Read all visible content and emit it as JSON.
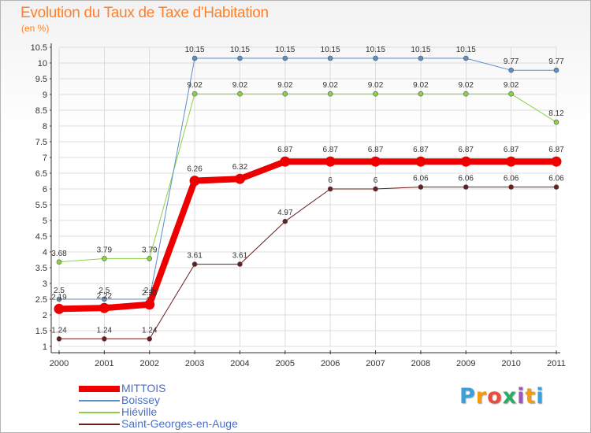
{
  "header": {
    "title": "Evolution du Taux de Taxe d'Habitation",
    "subtitle": "(en %)"
  },
  "chart_data": {
    "type": "line",
    "title": "Evolution du Taux de Taxe d'Habitation",
    "ylabel": "(en %)",
    "xlabel": "",
    "x": [
      "2000",
      "2001",
      "2002",
      "2003",
      "2004",
      "2005",
      "2006",
      "2007",
      "2008",
      "2009",
      "2010",
      "2011"
    ],
    "ylim": [
      1,
      10.5
    ],
    "yticks": [
      1,
      1.5,
      2,
      2.5,
      3,
      3.5,
      4,
      4.5,
      5,
      5.5,
      6,
      6.5,
      7,
      7.5,
      8,
      8.5,
      9,
      9.5,
      10,
      10.5
    ],
    "ytick_labels": [
      "1",
      "1.5",
      "2",
      "2.5",
      "3",
      "3.5",
      "4",
      "4.5",
      "5",
      "5.5",
      "6",
      "6.5",
      "7",
      "7.5",
      "8",
      "8.5",
      "9",
      "9.5",
      "10",
      "10.5"
    ],
    "grid": true,
    "legend_position": "bottom-left",
    "series": [
      {
        "name": "Saint-Georges-en-Auge",
        "color": "#6b1c1c",
        "width": 1,
        "values": [
          1.24,
          1.24,
          1.24,
          3.61,
          3.61,
          4.97,
          6,
          6,
          6.06,
          6.06,
          6.06,
          6.06
        ],
        "labels": [
          "1.24",
          "1.24",
          "1.24",
          "3.61",
          "3.61",
          "4.97",
          "6",
          "6",
          "6.06",
          "6.06",
          "6.06",
          "6.06"
        ]
      },
      {
        "name": "Hiéville",
        "color": "#8cd143",
        "width": 1,
        "values": [
          3.68,
          3.79,
          3.79,
          9.02,
          9.02,
          9.02,
          9.02,
          9.02,
          9.02,
          9.02,
          9.02,
          8.12
        ],
        "labels": [
          "3.68",
          "3.79",
          "3.79",
          "9.02",
          "9.02",
          "9.02",
          "9.02",
          "9.02",
          "9.02",
          "9.02",
          "9.02",
          "8.12"
        ]
      },
      {
        "name": "Boissey",
        "color": "#5b8fc7",
        "width": 1,
        "values": [
          2.5,
          2.5,
          2.5,
          10.15,
          10.15,
          10.15,
          10.15,
          10.15,
          10.15,
          10.15,
          9.77,
          9.77
        ],
        "labels": [
          "2.5",
          "2.5",
          "2.5",
          "10.15",
          "10.15",
          "10.15",
          "10.15",
          "10.15",
          "10.15",
          "10.15",
          "9.77",
          "9.77"
        ]
      },
      {
        "name": "MITTOIS",
        "color": "#ee0000",
        "width": 8,
        "values": [
          2.19,
          2.22,
          2.33,
          6.26,
          6.32,
          6.87,
          6.87,
          6.87,
          6.87,
          6.87,
          6.87,
          6.87
        ],
        "labels": [
          "2.19",
          "2.22",
          "2.33",
          "6.26",
          "6.32",
          "6.87",
          "6.87",
          "6.87",
          "6.87",
          "6.87",
          "6.87",
          "6.87"
        ]
      }
    ]
  },
  "legend": [
    {
      "label": "MITTOIS",
      "color": "#ee0000"
    },
    {
      "label": "Boissey",
      "color": "#5b8fc7"
    },
    {
      "label": "Hiéville",
      "color": "#8cd143"
    },
    {
      "label": "Saint-Georges-en-Auge",
      "color": "#6b1c1c"
    }
  ],
  "logo": {
    "text": "Proxiti"
  }
}
